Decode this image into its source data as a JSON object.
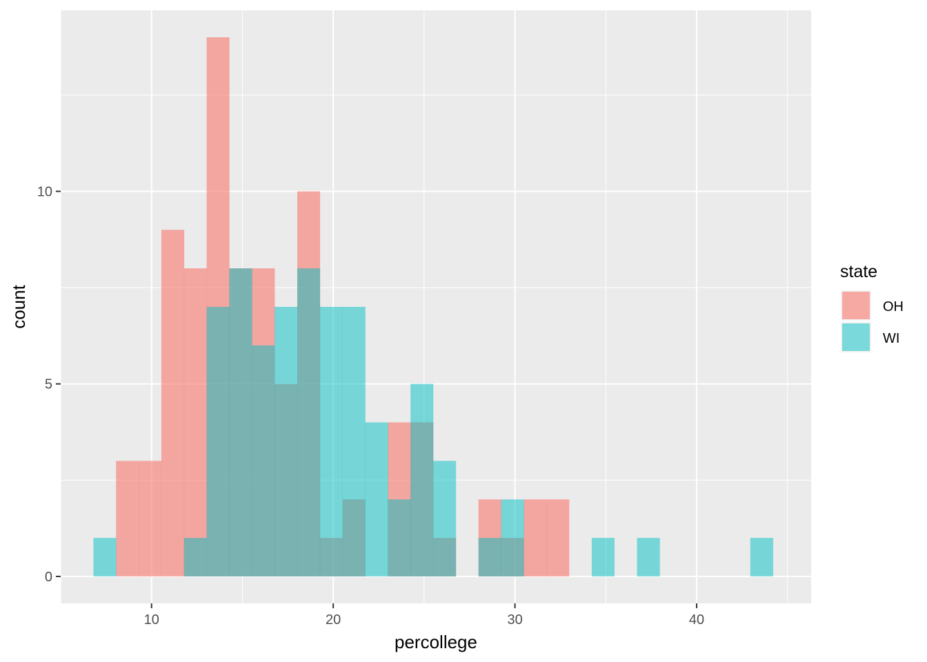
{
  "chart_data": {
    "type": "bar",
    "subtype": "overlapping-histogram",
    "xlabel": "percollege",
    "ylabel": "count",
    "xlim": [
      5.0,
      46.3
    ],
    "ylim": [
      -0.7,
      14.7
    ],
    "x_ticks": [
      10,
      20,
      30,
      40
    ],
    "y_ticks": [
      0,
      5,
      10
    ],
    "bin_width": 1.2466,
    "bin_start": 6.8,
    "grid": true,
    "legend": {
      "title": "state",
      "position": "right",
      "items": [
        {
          "label": "OH",
          "color": "#F8766D"
        },
        {
          "label": "WI",
          "color": "#00BFC4"
        }
      ]
    },
    "series": [
      {
        "name": "OH",
        "color": "#F8766D",
        "opacity": 0.6,
        "values": [
          0,
          3,
          3,
          9,
          8,
          14,
          8,
          8,
          5,
          10,
          1,
          2,
          0,
          4,
          4,
          1,
          0,
          2,
          1,
          2,
          2,
          0,
          0,
          0,
          0,
          0,
          0,
          0,
          0,
          0
        ]
      },
      {
        "name": "WI",
        "color": "#00BFC4",
        "opacity": 0.5,
        "values": [
          1,
          0,
          0,
          0,
          1,
          7,
          8,
          6,
          7,
          8,
          7,
          7,
          4,
          2,
          5,
          3,
          0,
          1,
          2,
          0,
          0,
          0,
          1,
          0,
          1,
          0,
          0,
          0,
          0,
          1
        ]
      }
    ]
  }
}
